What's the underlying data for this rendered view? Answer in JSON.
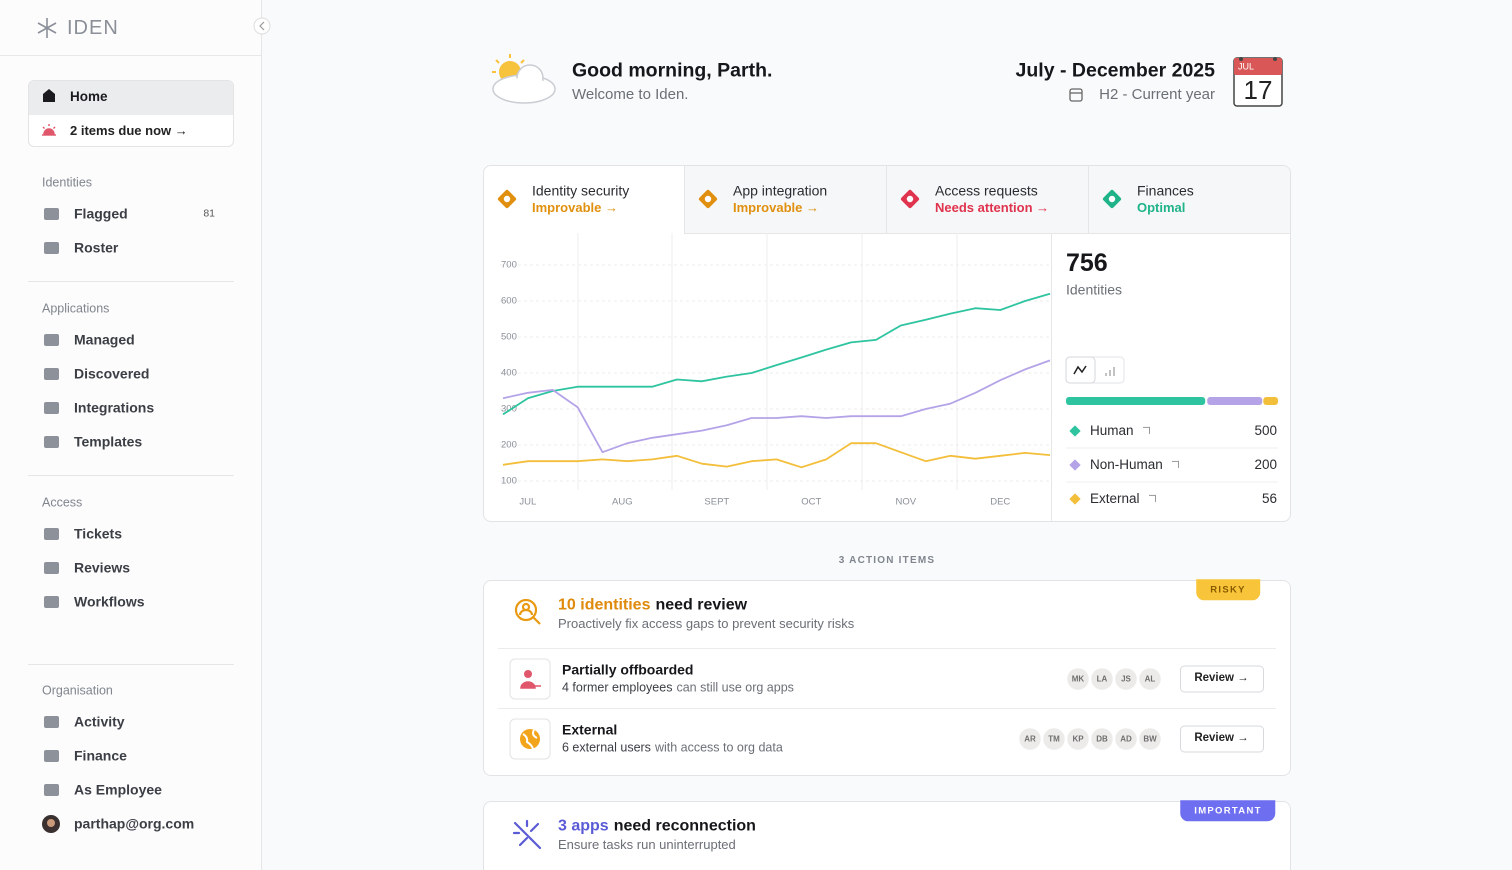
{
  "sidebar": {
    "brand": "IDEN",
    "home": "Home",
    "due": "2 items due now →",
    "sections": [
      {
        "title": "Identities",
        "items": [
          {
            "label": "Flagged",
            "count": 81
          },
          {
            "label": "Roster"
          }
        ]
      },
      {
        "title": "Applications",
        "items": [
          {
            "label": "Managed"
          },
          {
            "label": "Discovered"
          },
          {
            "label": "Integrations"
          },
          {
            "label": "Templates"
          }
        ]
      },
      {
        "title": "Access",
        "items": [
          {
            "label": "Tickets"
          },
          {
            "label": "Reviews"
          },
          {
            "label": "Workflows"
          }
        ]
      },
      {
        "title": "Organisation",
        "items": [
          {
            "label": "Activity"
          },
          {
            "label": "Finance"
          },
          {
            "label": "As Employee"
          }
        ]
      }
    ],
    "user": "parthap@org.com"
  },
  "header": {
    "greeting": "Good morning, Parth.",
    "welcome": "Welcome to Iden.",
    "period": "July - December 2025",
    "period_sub": "H2 - Current year",
    "calendar_month": "JUL",
    "calendar_day": "17"
  },
  "tabs": [
    {
      "title": "Identity security",
      "status": "Improvable →",
      "color": "#e0900e"
    },
    {
      "title": "App integration",
      "status": "Improvable →",
      "color": "#e0900e"
    },
    {
      "title": "Access requests",
      "status": "Needs attention →",
      "color": "#e0334d"
    },
    {
      "title": "Finances",
      "status": "Optimal",
      "color": "#1fb38a"
    }
  ],
  "chart_data": {
    "type": "line",
    "x": [
      0,
      1,
      2,
      3,
      4,
      5,
      6,
      7,
      8,
      9,
      10,
      11,
      12,
      13,
      14,
      15,
      16,
      17,
      18,
      19,
      20,
      21,
      22
    ],
    "xlim": [
      0,
      22
    ],
    "xticks": [
      {
        "value": 1,
        "label": "JUL"
      },
      {
        "value": 4.8,
        "label": "AUG"
      },
      {
        "value": 8.6,
        "label": "SEPT"
      },
      {
        "value": 12.4,
        "label": "OCT"
      },
      {
        "value": 16.2,
        "label": "NOV"
      },
      {
        "value": 20,
        "label": "DEC"
      }
    ],
    "ylim": [
      100,
      700
    ],
    "yticks": [
      100,
      200,
      300,
      400,
      500,
      600,
      700
    ],
    "grid": true,
    "total": 756,
    "total_label": "Identities",
    "series": [
      {
        "name": "Human",
        "color": "#2ec4a0",
        "count": 500,
        "values": [
          285,
          330,
          350,
          362,
          362,
          362,
          362,
          382,
          377,
          390,
          400,
          422,
          443,
          465,
          485,
          492,
          532,
          548,
          565,
          580,
          575,
          600,
          620
        ]
      },
      {
        "name": "Non-Human",
        "color": "#b5a3e8",
        "count": 200,
        "values": [
          330,
          345,
          353,
          305,
          180,
          205,
          220,
          230,
          240,
          255,
          275,
          275,
          280,
          275,
          280,
          280,
          280,
          300,
          315,
          345,
          380,
          410,
          435
        ]
      },
      {
        "name": "External",
        "color": "#f3be3a",
        "count": 56,
        "values": [
          145,
          155,
          155,
          155,
          160,
          155,
          160,
          170,
          148,
          140,
          155,
          160,
          138,
          160,
          205,
          205,
          180,
          155,
          170,
          162,
          170,
          178,
          172
        ]
      }
    ]
  },
  "action_items": {
    "heading": "3 ACTION ITEMS",
    "cards": [
      {
        "badge": "RISKY",
        "highlight": "10 identities",
        "title": "need review",
        "subtitle": "Proactively fix access gaps to prevent security risks",
        "rows": [
          {
            "title": "Partially offboarded",
            "highlight": "4 former employees",
            "detail": "can still use org apps",
            "avatars": [
              "MK",
              "LA",
              "JS",
              "AL"
            ],
            "action": "Review →"
          },
          {
            "title": "External",
            "highlight": "6 external users",
            "detail": "with access to org data",
            "avatars": [
              "AR",
              "TM",
              "KP",
              "DB",
              "AD",
              "BW"
            ],
            "action": "Review →"
          }
        ]
      },
      {
        "badge": "IMPORTANT",
        "highlight": "3 apps",
        "title": "need reconnection",
        "subtitle": "Ensure tasks run uninterrupted"
      }
    ]
  }
}
